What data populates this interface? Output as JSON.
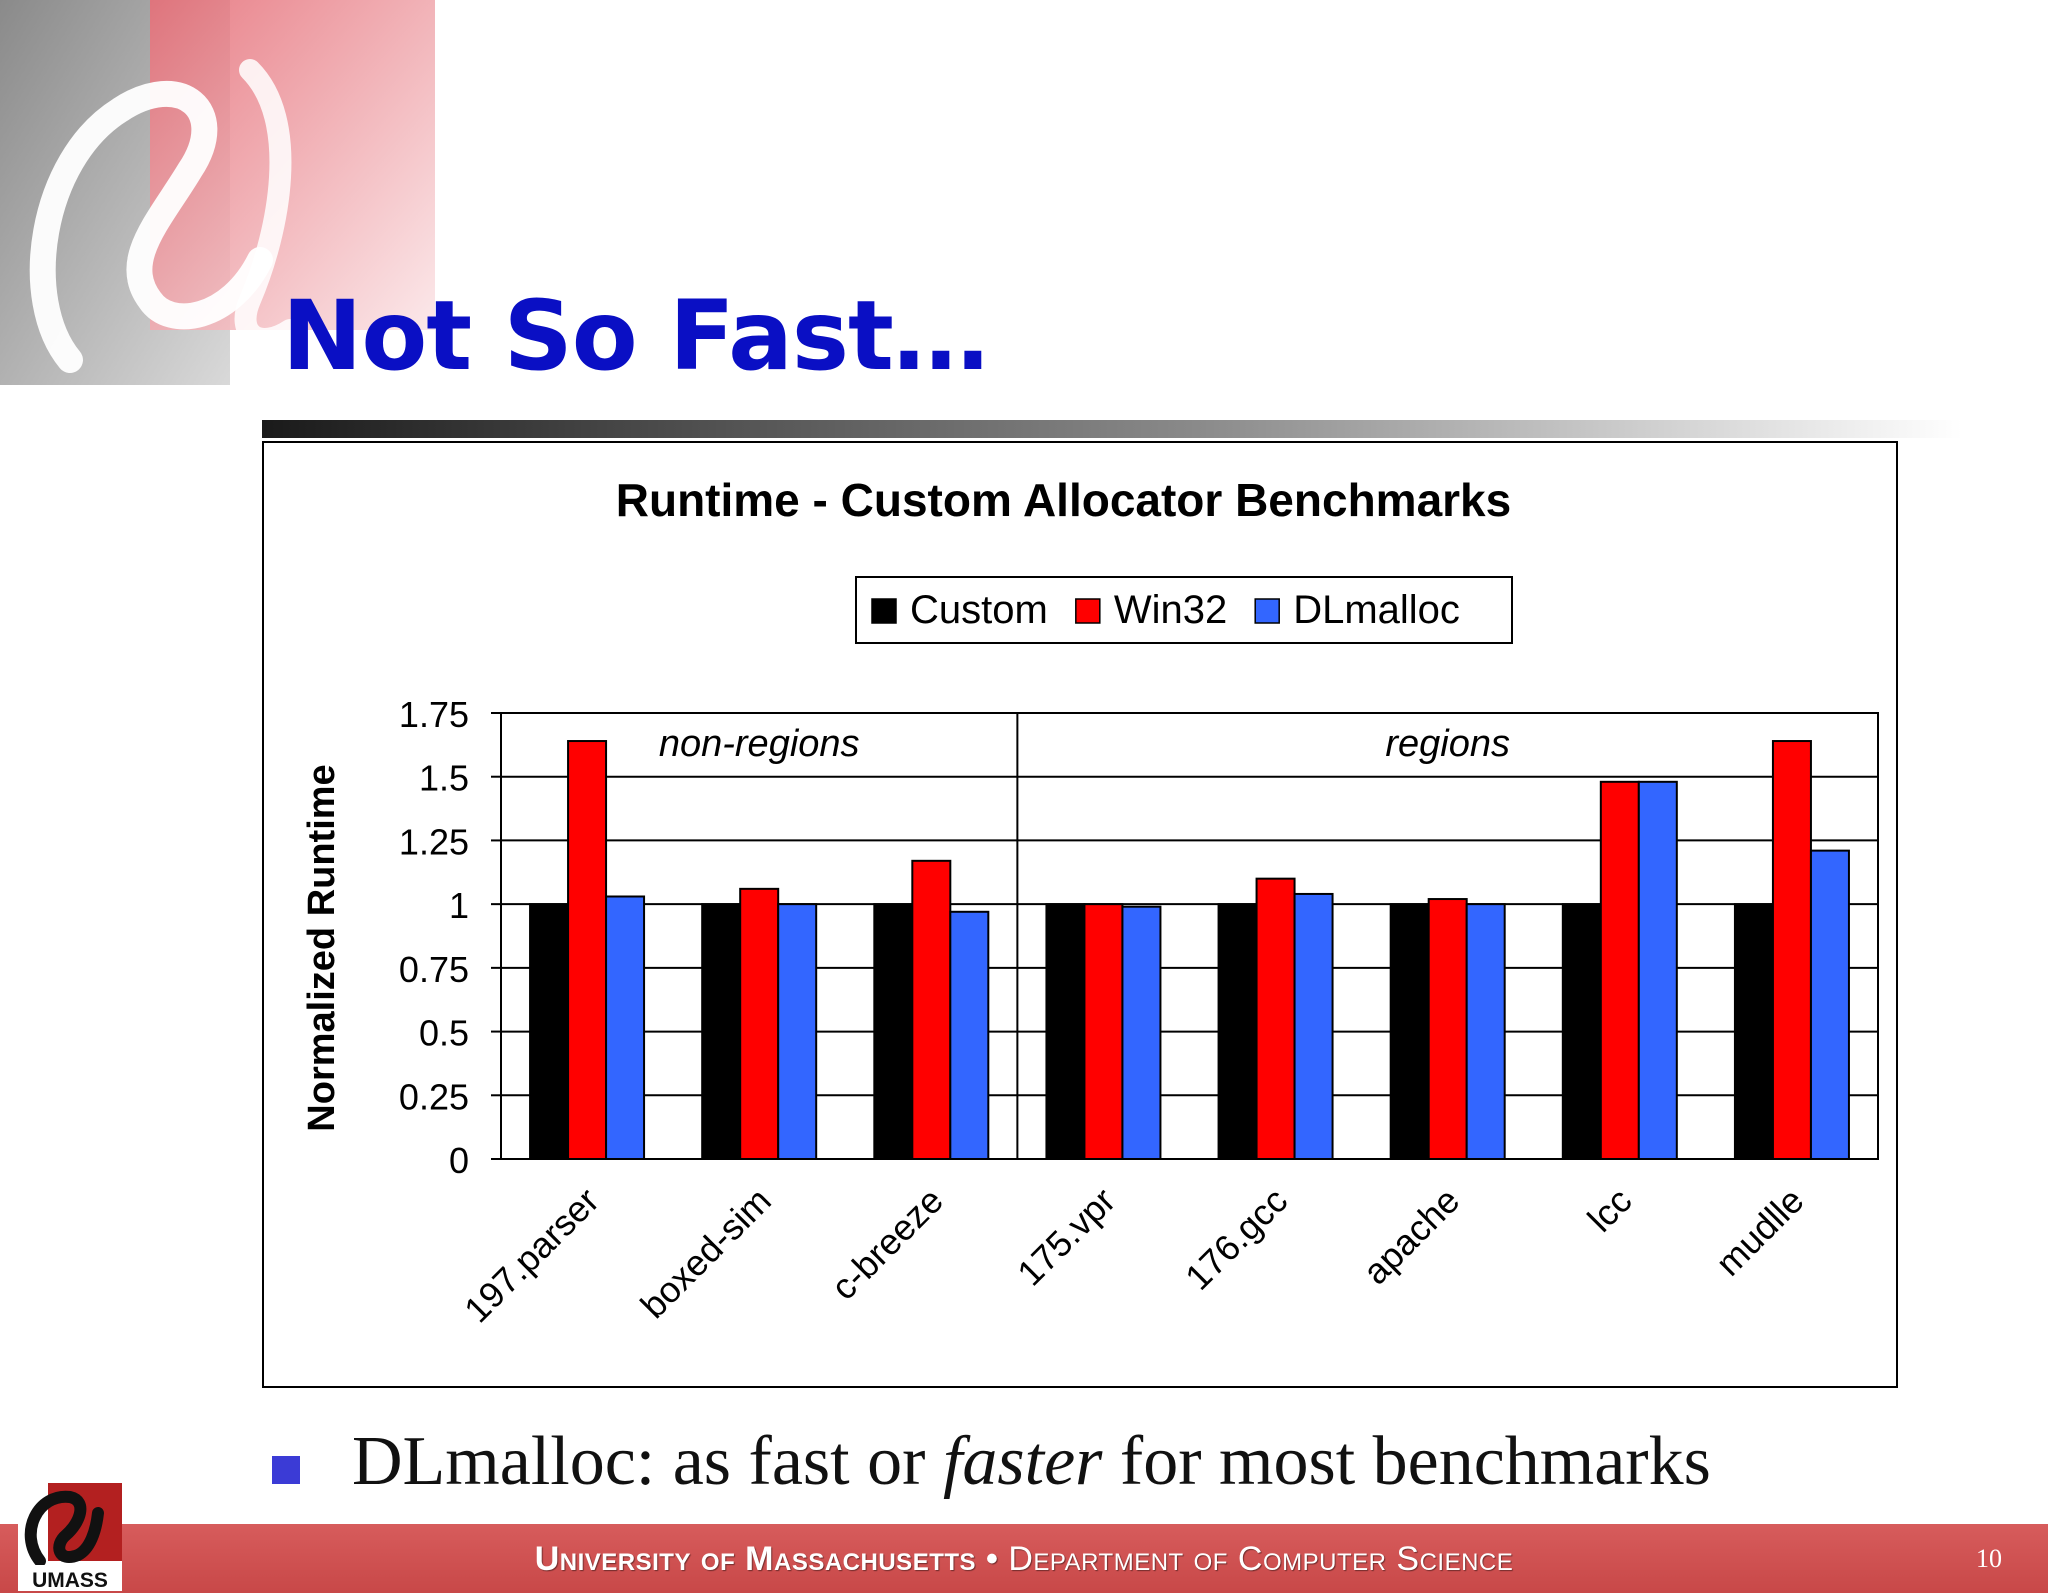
{
  "slide": {
    "title": "Not So Fast…",
    "bullet_prefix": "DLmalloc: as fast or ",
    "bullet_emphasis": "faster",
    "bullet_suffix": " for most benchmarks",
    "footer_university": "University of Massachusetts",
    "footer_separator": "•",
    "footer_department": "Department of Computer Science",
    "page_number": "10",
    "logo_text": "UMASS"
  },
  "colors": {
    "title": "#0a0fc4",
    "custom": "#000000",
    "win32": "#ff0000",
    "dlmalloc": "#3366ff",
    "footer": "#c84848",
    "bullet": "#3b3bd6"
  },
  "chart_data": {
    "type": "bar",
    "title": "Runtime - Custom Allocator Benchmarks",
    "ylabel": "Normalized Runtime",
    "xlabel": "",
    "ylim": [
      0,
      1.75
    ],
    "yticks": [
      "0",
      "0.25",
      "0.5",
      "0.75",
      "1",
      "1.25",
      "1.5",
      "1.75"
    ],
    "grid": true,
    "legend_position": "top-center",
    "categories": [
      "197.parser",
      "boxed-sim",
      "c-breeze",
      "175.vpr",
      "176.gcc",
      "apache",
      "lcc",
      "mudlle"
    ],
    "series": [
      {
        "name": "Custom",
        "values": [
          1,
          1,
          1,
          1,
          1,
          1,
          1,
          1
        ]
      },
      {
        "name": "Win32",
        "values": [
          1.64,
          1.06,
          1.17,
          1.0,
          1.1,
          1.02,
          1.48,
          1.64
        ]
      },
      {
        "name": "DLmalloc",
        "values": [
          1.03,
          1.0,
          0.97,
          0.99,
          1.04,
          1.0,
          1.48,
          1.21
        ]
      }
    ],
    "groups": [
      {
        "label": "non-regions",
        "categories": [
          "197.parser",
          "boxed-sim",
          "c-breeze"
        ]
      },
      {
        "label": "regions",
        "categories": [
          "175.vpr",
          "176.gcc",
          "apache",
          "lcc",
          "mudlle"
        ]
      }
    ]
  }
}
